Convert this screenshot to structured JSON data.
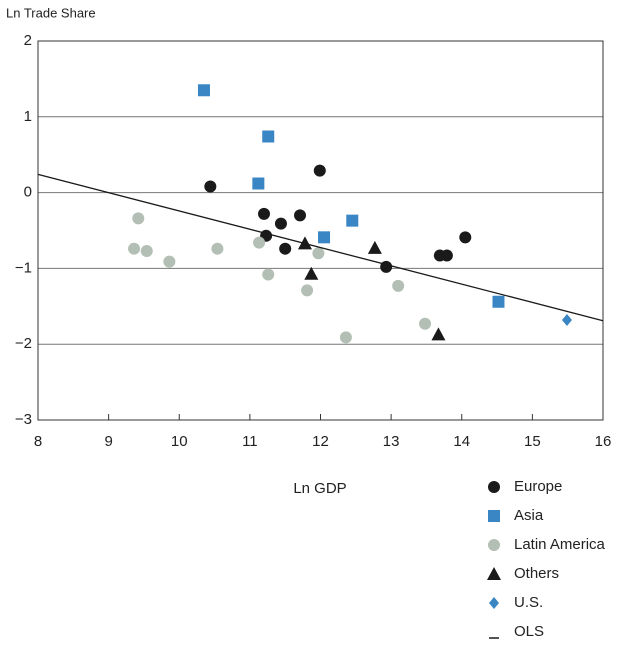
{
  "chart_data": {
    "type": "scatter",
    "y_label": "Ln Trade Share",
    "x_label": "Ln GDP",
    "xlim": [
      8,
      16
    ],
    "xticks": [
      8,
      9,
      10,
      11,
      12,
      13,
      14,
      15,
      16
    ],
    "ylim": [
      -3,
      2
    ],
    "yticks": [
      {
        "value": -3,
        "label": "−3"
      },
      {
        "value": -2,
        "label": "−2"
      },
      {
        "value": -1,
        "label": "−1"
      },
      0,
      1,
      2
    ],
    "grid": true,
    "series": [
      {
        "name": "Europe",
        "color": "#1a1a1a",
        "marker": "circle",
        "x": [
          10.44,
          11.99,
          11.2,
          11.23,
          11.44,
          11.5,
          11.71,
          12.93,
          13.69,
          13.79,
          14.05
        ],
        "values": [
          0.08,
          0.29,
          -0.28,
          -0.57,
          -0.41,
          -0.74,
          -0.3,
          -0.98,
          -0.83,
          -0.83,
          -0.59
        ]
      },
      {
        "name": "Asia",
        "color": "#3a86c4",
        "marker": "square",
        "x": [
          10.35,
          11.26,
          11.12,
          12.45,
          12.05,
          14.52
        ],
        "values": [
          1.35,
          0.74,
          0.12,
          -0.37,
          -0.59,
          -1.44
        ]
      },
      {
        "name": "Latin America",
        "color": "#b3bfb4",
        "marker": "circle",
        "x": [
          9.42,
          9.36,
          9.54,
          9.86,
          10.54,
          11.13,
          11.26,
          11.81,
          11.97,
          12.36,
          13.1,
          13.48
        ],
        "values": [
          -0.34,
          -0.74,
          -0.77,
          -0.91,
          -0.74,
          -0.66,
          -1.08,
          -1.29,
          -0.8,
          -1.91,
          -1.23,
          -1.73
        ]
      },
      {
        "name": "Others",
        "color": "#1a1a1a",
        "marker": "triangle",
        "x": [
          11.78,
          11.87,
          12.77,
          13.67
        ],
        "values": [
          -0.67,
          -1.07,
          -0.73,
          -1.87
        ]
      },
      {
        "name": "U.S.",
        "color": "#3a86c4",
        "marker": "diamond",
        "x": [
          15.49
        ],
        "values": [
          -1.68
        ]
      },
      {
        "name": "OLS",
        "color": "#1a1a1a",
        "marker": "line",
        "x": [
          8,
          16
        ],
        "values": [
          0.24,
          -1.69
        ]
      }
    ]
  }
}
